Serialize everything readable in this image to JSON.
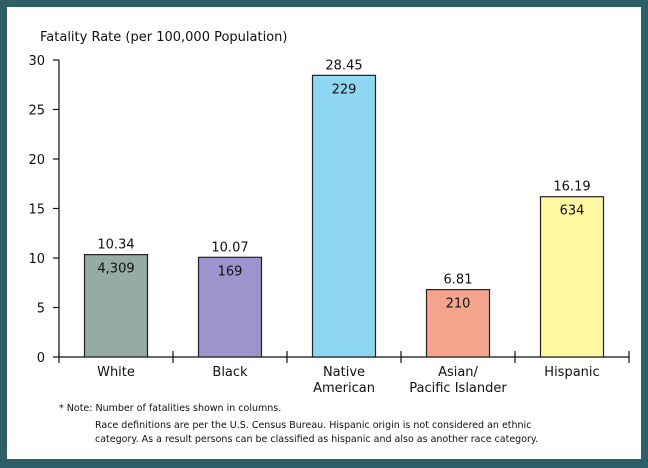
{
  "chart_data": {
    "type": "bar",
    "ylabel": "Fatality Rate (per 100,000 Population)",
    "ylim": [
      0,
      30
    ],
    "yticks": [
      0,
      5,
      10,
      15,
      20,
      25,
      30
    ],
    "grid": false,
    "categories": [
      {
        "lines": [
          "White"
        ]
      },
      {
        "lines": [
          "Black"
        ]
      },
      {
        "lines": [
          "Native",
          "American"
        ]
      },
      {
        "lines": [
          "Asian/",
          "Pacific Islander"
        ]
      },
      {
        "lines": [
          "Hispanic"
        ]
      }
    ],
    "values": [
      10.34,
      10.07,
      28.45,
      6.81,
      16.19
    ],
    "value_labels": [
      "10.34",
      "10.07",
      "28.45",
      "6.81",
      "16.19"
    ],
    "counts": [
      "4,309",
      "169",
      "229",
      "210",
      "634"
    ],
    "colors": [
      "#96aba6",
      "#9e93cc",
      "#8fd6f2",
      "#f5a58e",
      "#fef8a2"
    ]
  },
  "notes": {
    "line1": "* Note:  Number of fatalities shown in columns.",
    "line2": "Race definitions are per the U.S. Census Bureau.  Hispanic origin is not considered an ethnic",
    "line3": "category.  As a result persons can be classified as hispanic and also as another race category."
  }
}
